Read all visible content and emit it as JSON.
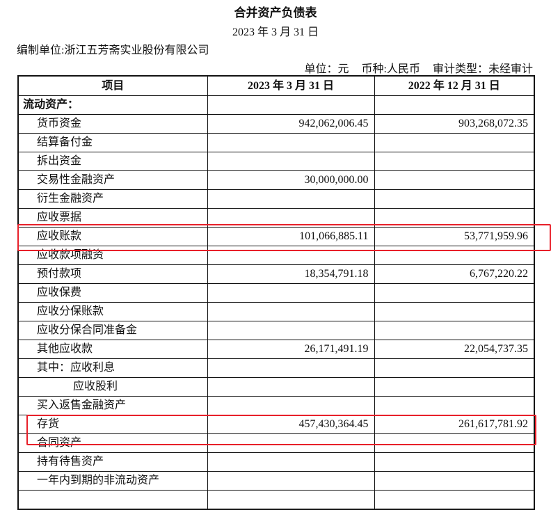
{
  "title": "合并资产负债表",
  "date": "2023 年 3 月 31 日",
  "company": "编制单位:浙江五芳斋实业股份有限公司",
  "meta": {
    "unit": "单位：元",
    "currency": "币种:人民币",
    "audit": "审计类型：未经审计"
  },
  "columns": [
    "项目",
    "2023 年 3 月 31 日",
    "2022 年 12 月 31 日"
  ],
  "rows": [
    {
      "item": "流动资产：",
      "cur": "",
      "prev": ""
    },
    {
      "item": "货币资金",
      "cur": "942,062,006.45",
      "prev": "903,268,072.35"
    },
    {
      "item": "结算备付金",
      "cur": "",
      "prev": ""
    },
    {
      "item": "拆出资金",
      "cur": "",
      "prev": ""
    },
    {
      "item": "交易性金融资产",
      "cur": "30,000,000.00",
      "prev": ""
    },
    {
      "item": "衍生金融资产",
      "cur": "",
      "prev": ""
    },
    {
      "item": "应收票据",
      "cur": "",
      "prev": ""
    },
    {
      "item": "应收账款",
      "cur": "101,066,885.11",
      "prev": "53,771,959.96"
    },
    {
      "item": "应收款项融资",
      "cur": "",
      "prev": ""
    },
    {
      "item": "预付款项",
      "cur": "18,354,791.18",
      "prev": "6,767,220.22"
    },
    {
      "item": "应收保费",
      "cur": "",
      "prev": ""
    },
    {
      "item": "应收分保账款",
      "cur": "",
      "prev": ""
    },
    {
      "item": "应收分保合同准备金",
      "cur": "",
      "prev": ""
    },
    {
      "item": "其他应收款",
      "cur": "26,171,491.19",
      "prev": "22,054,737.35"
    },
    {
      "item": "其中：应收利息",
      "cur": "",
      "prev": ""
    },
    {
      "item": "应收股利",
      "cur": "",
      "prev": ""
    },
    {
      "item": "买入返售金融资产",
      "cur": "",
      "prev": ""
    },
    {
      "item": "存货",
      "cur": "457,430,364.45",
      "prev": "261,617,781.92"
    },
    {
      "item": "合同资产",
      "cur": "",
      "prev": ""
    },
    {
      "item": "持有待售资产",
      "cur": "",
      "prev": ""
    },
    {
      "item": "一年内到期的非流动资产",
      "cur": "",
      "prev": ""
    },
    {
      "item": "",
      "cur": "",
      "prev": ""
    }
  ],
  "highlight_color": "#e8202a"
}
